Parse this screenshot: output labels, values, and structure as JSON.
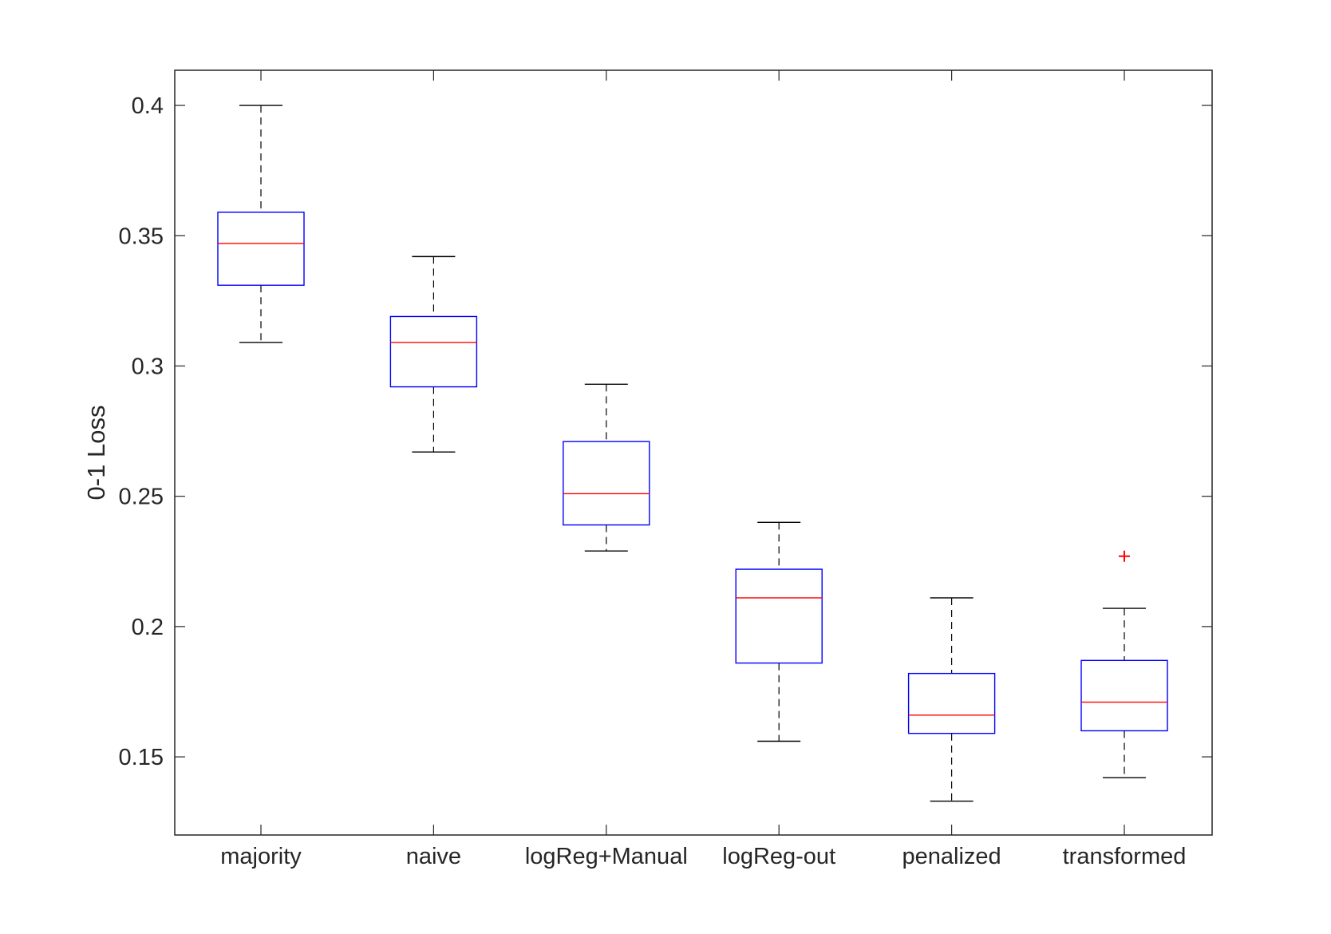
{
  "chart_data": {
    "type": "boxplot",
    "title": "",
    "xlabel": "",
    "ylabel": "0-1 Loss",
    "ylim": [
      0.12,
      0.4135
    ],
    "yticks": [
      0.15,
      0.2,
      0.25,
      0.3,
      0.35,
      0.4
    ],
    "ytick_labels": [
      "0.15",
      "0.2",
      "0.25",
      "0.3",
      "0.35",
      "0.4"
    ],
    "grid": false,
    "legend": "none",
    "categories": [
      "majority",
      "naive",
      "logReg+Manual",
      "logReg-out",
      "penalized",
      "transformed"
    ],
    "boxes": [
      {
        "name": "majority",
        "whisker_low": 0.309,
        "q1": 0.331,
        "median": 0.347,
        "q3": 0.359,
        "whisker_high": 0.4,
        "outliers": []
      },
      {
        "name": "naive",
        "whisker_low": 0.267,
        "q1": 0.292,
        "median": 0.309,
        "q3": 0.319,
        "whisker_high": 0.342,
        "outliers": []
      },
      {
        "name": "logReg+Manual",
        "whisker_low": 0.229,
        "q1": 0.239,
        "median": 0.251,
        "q3": 0.271,
        "whisker_high": 0.293,
        "outliers": []
      },
      {
        "name": "logReg-out",
        "whisker_low": 0.156,
        "q1": 0.186,
        "median": 0.211,
        "q3": 0.222,
        "whisker_high": 0.24,
        "outliers": []
      },
      {
        "name": "penalized",
        "whisker_low": 0.133,
        "q1": 0.159,
        "median": 0.166,
        "q3": 0.182,
        "whisker_high": 0.211,
        "outliers": []
      },
      {
        "name": "transformed",
        "whisker_low": 0.142,
        "q1": 0.16,
        "median": 0.171,
        "q3": 0.187,
        "whisker_high": 0.207,
        "outliers": [
          0.227
        ]
      }
    ],
    "colors": {
      "box": "#0000ff",
      "median": "#ff0000",
      "whisker": "#000000",
      "outlier": "#ff0000",
      "axis": "#262626"
    }
  }
}
